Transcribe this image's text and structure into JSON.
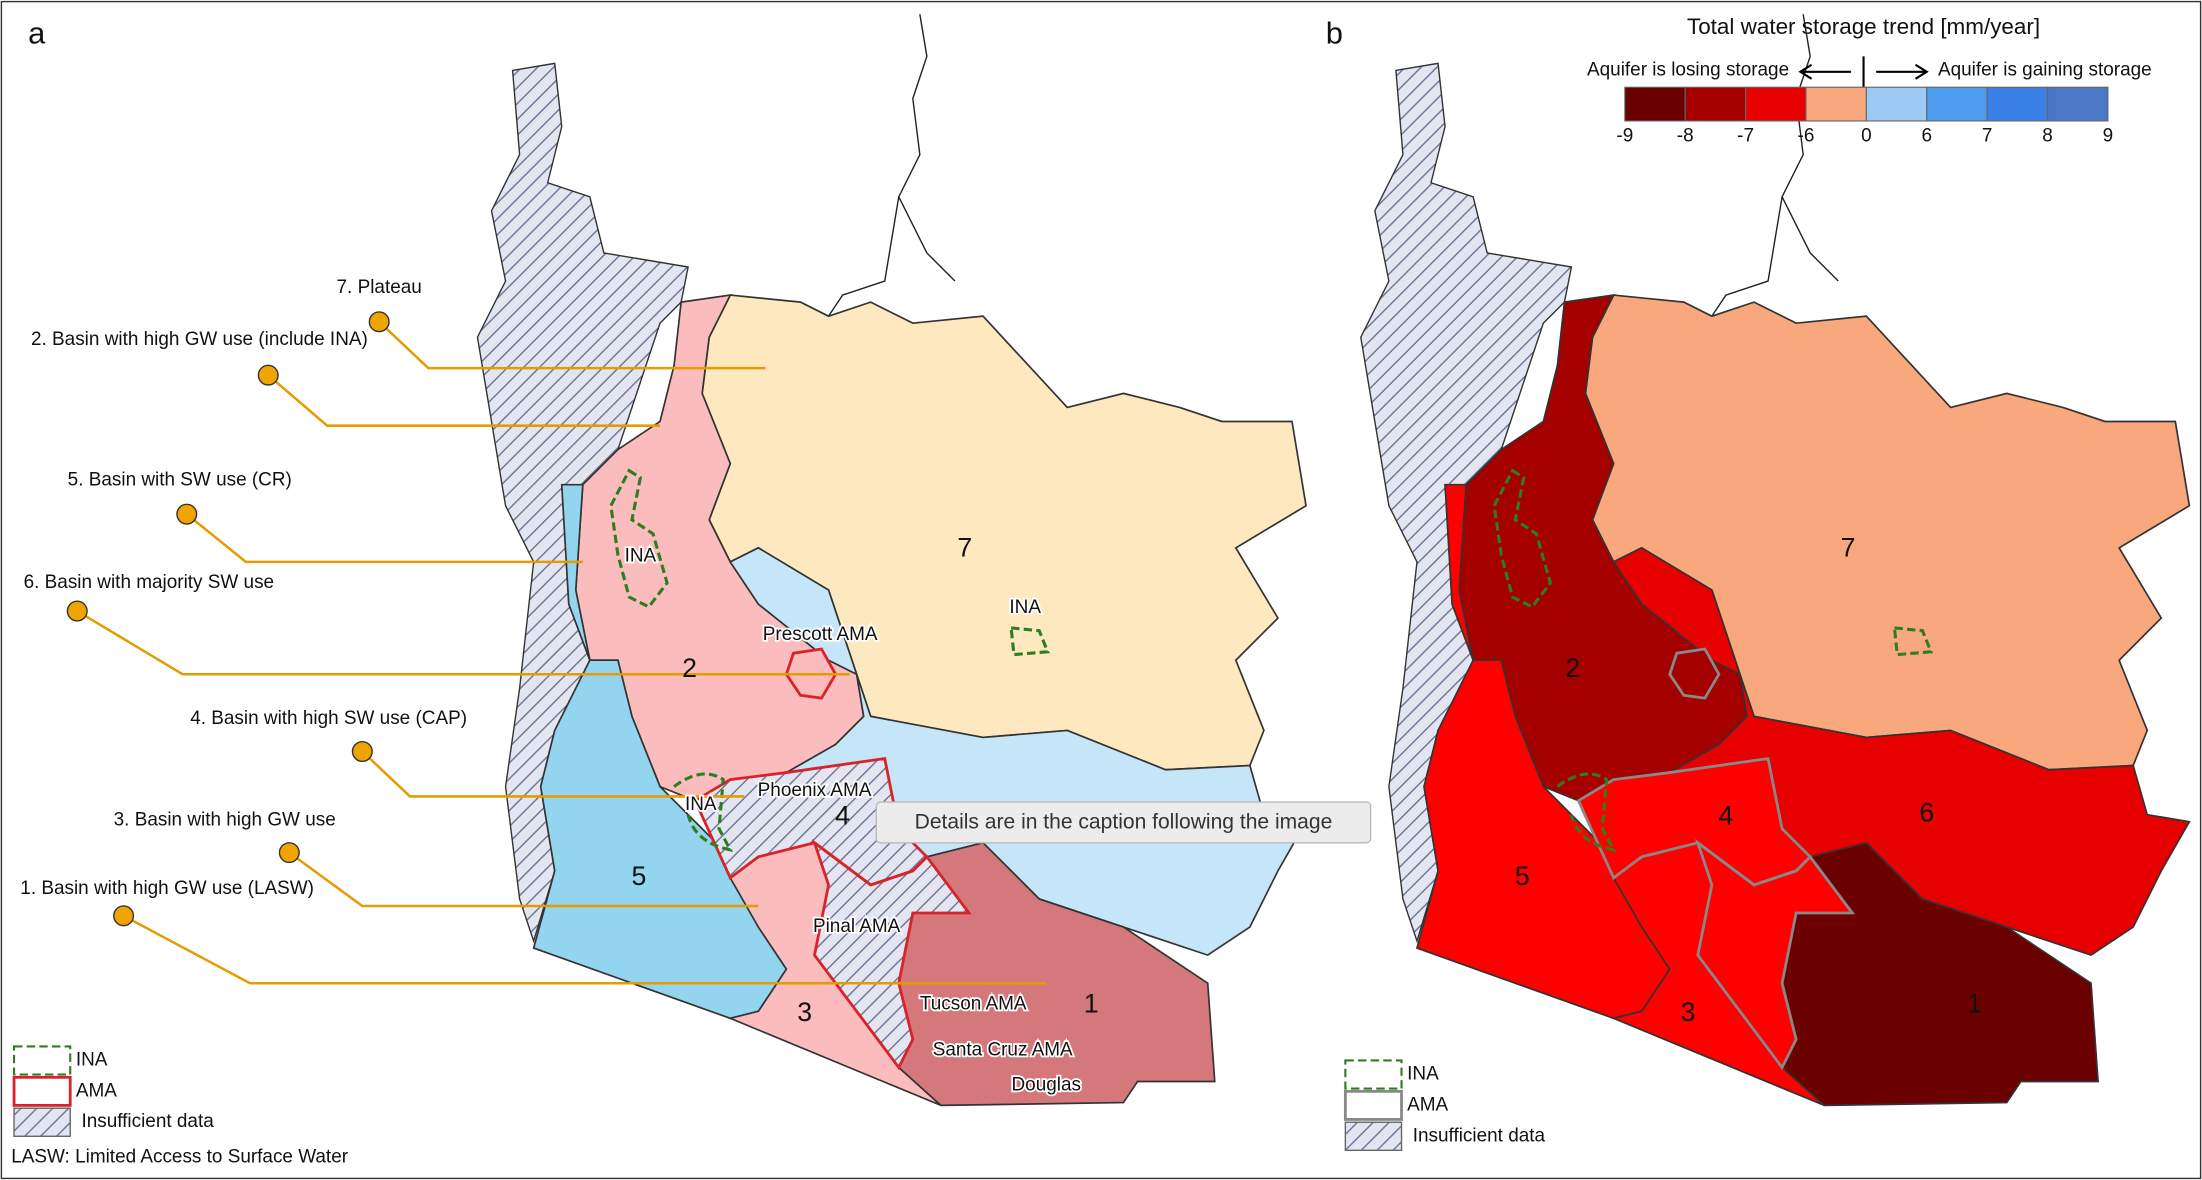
{
  "panel_a": {
    "label": "a",
    "callouts": [
      "7. Plateau",
      "2. Basin with high GW use (include INA)",
      "5. Basin with SW use (CR)",
      "6. Basin with majority SW use",
      "4. Basin with high SW use (CAP)",
      "3. Basin with high GW use",
      "1. Basin with high GW use (LASW)"
    ],
    "region_numbers": [
      "7",
      "2",
      "4",
      "5",
      "3",
      "1"
    ],
    "map_labels": [
      "INA",
      "Prescott AMA",
      "INA",
      "INA",
      "Phoenix AMA",
      "Pinal AMA",
      "Tucson AMA",
      "Santa Cruz AMA",
      "Douglas"
    ],
    "legend": {
      "ina": "INA",
      "ama": "AMA",
      "insufficient": "Insufficient data",
      "note": "LASW: Limited Access to Surface Water"
    }
  },
  "panel_b": {
    "label": "b",
    "region_numbers": [
      "7",
      "2",
      "6",
      "4",
      "5",
      "3",
      "1"
    ],
    "colorbar": {
      "title": "Total water storage trend [mm/year]",
      "losing": "Aquifer is losing storage",
      "gaining": "Aquifer is gaining storage",
      "ticks": [
        "-9",
        "-8",
        "-7",
        "-6",
        "0",
        "6",
        "7",
        "8",
        "9"
      ],
      "colors": [
        "#6b0000",
        "#a50000",
        "#e60000",
        "#f9a77c",
        "#9ccaf7",
        "#4d9cef",
        "#3b80e6",
        "#4a78c6"
      ]
    },
    "legend": {
      "ina": "INA",
      "ama": "AMA",
      "insufficient": "Insufficient data"
    }
  },
  "tooltip": "Details are in the caption following the image"
}
